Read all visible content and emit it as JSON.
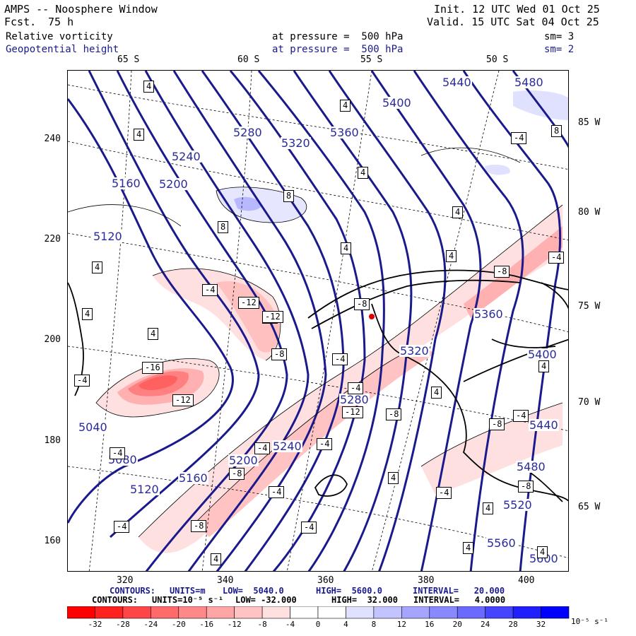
{
  "header": {
    "title": "AMPS -- Noosphere Window",
    "fcst_label": "Fcst.",
    "fcst_value": "75 h",
    "init": "Init. 12 UTC Wed 01 Oct 25",
    "valid": "Valid. 15 UTC Sat 04 Oct 25",
    "field1_name": "Relative vorticity",
    "field1_level": "at pressure =  500 hPa",
    "field1_sm": "sm= 3",
    "field2_name": "Geopotential height",
    "field2_level": "at pressure =  500 hPa",
    "field2_sm": "sm= 2"
  },
  "map": {
    "top_lat_labels": [
      "65 S",
      "60 S",
      "55 S",
      "50 S"
    ],
    "right_lon_labels": [
      "85 W",
      "80 W",
      "75 W",
      "70 W",
      "65 W"
    ],
    "y_ticks": [
      "240",
      "220",
      "200",
      "180",
      "160"
    ],
    "x_ticks": [
      "320",
      "340",
      "360",
      "380",
      "400"
    ],
    "height_labels": [
      "5440",
      "5480",
      "5400",
      "5360",
      "5320",
      "5280",
      "5240",
      "5200",
      "5160",
      "5120",
      "5040",
      "5080",
      "5160",
      "5120",
      "5200",
      "5240",
      "5280",
      "5320",
      "5360",
      "5400",
      "5440",
      "5480",
      "5520",
      "5560",
      "5600"
    ],
    "vort_labels": [
      "4",
      "4",
      "8",
      "-4",
      "4",
      "4",
      "8",
      "4",
      "8",
      "4",
      "-4",
      "4",
      "4",
      "-4",
      "-8",
      "-12",
      "-8",
      "4",
      "-16",
      "4",
      "-4",
      "-12",
      "-4",
      "-4",
      "-4",
      "-4",
      "-8",
      "-4",
      "-12",
      "-12",
      "-8",
      "4",
      "4",
      "-4",
      "-8",
      "-4",
      "-8",
      "4",
      "-4",
      "-4",
      "4",
      "4",
      "-4",
      "4",
      "-8",
      "-4",
      "4",
      "-8"
    ],
    "station_marker": "red-dot"
  },
  "contour_info": {
    "line1": {
      "label": "CONTOURS:",
      "units": "UNITS=m",
      "low": "LOW=  5040.0",
      "high": "HIGH=  5600.0",
      "interval": "INTERVAL=   20.000"
    },
    "line2": {
      "label": "CONTOURS:",
      "units": "UNITS=10⁻⁵ s⁻¹",
      "low": "LOW= -32.000",
      "high": "HIGH=  32.000",
      "interval": "INTERVAL=   4.0000"
    }
  },
  "colorbar": {
    "labels": [
      "-32",
      "-28",
      "-24",
      "-20",
      "-16",
      "-12",
      "-8",
      "-4",
      "0",
      "4",
      "8",
      "12",
      "16",
      "20",
      "24",
      "28",
      "32"
    ],
    "unit": "10⁻⁵ s⁻¹",
    "colors": [
      "#ff0000",
      "#ff2020",
      "#ff4545",
      "#ff6a6a",
      "#ff8888",
      "#ffa5a5",
      "#ffc3c3",
      "#ffe0e0",
      "#ffffff",
      "#ffffff",
      "#e0e0ff",
      "#c3c3ff",
      "#a5a5ff",
      "#8888ff",
      "#6a6aff",
      "#4545ff",
      "#2020ff",
      "#0000ff"
    ]
  }
}
